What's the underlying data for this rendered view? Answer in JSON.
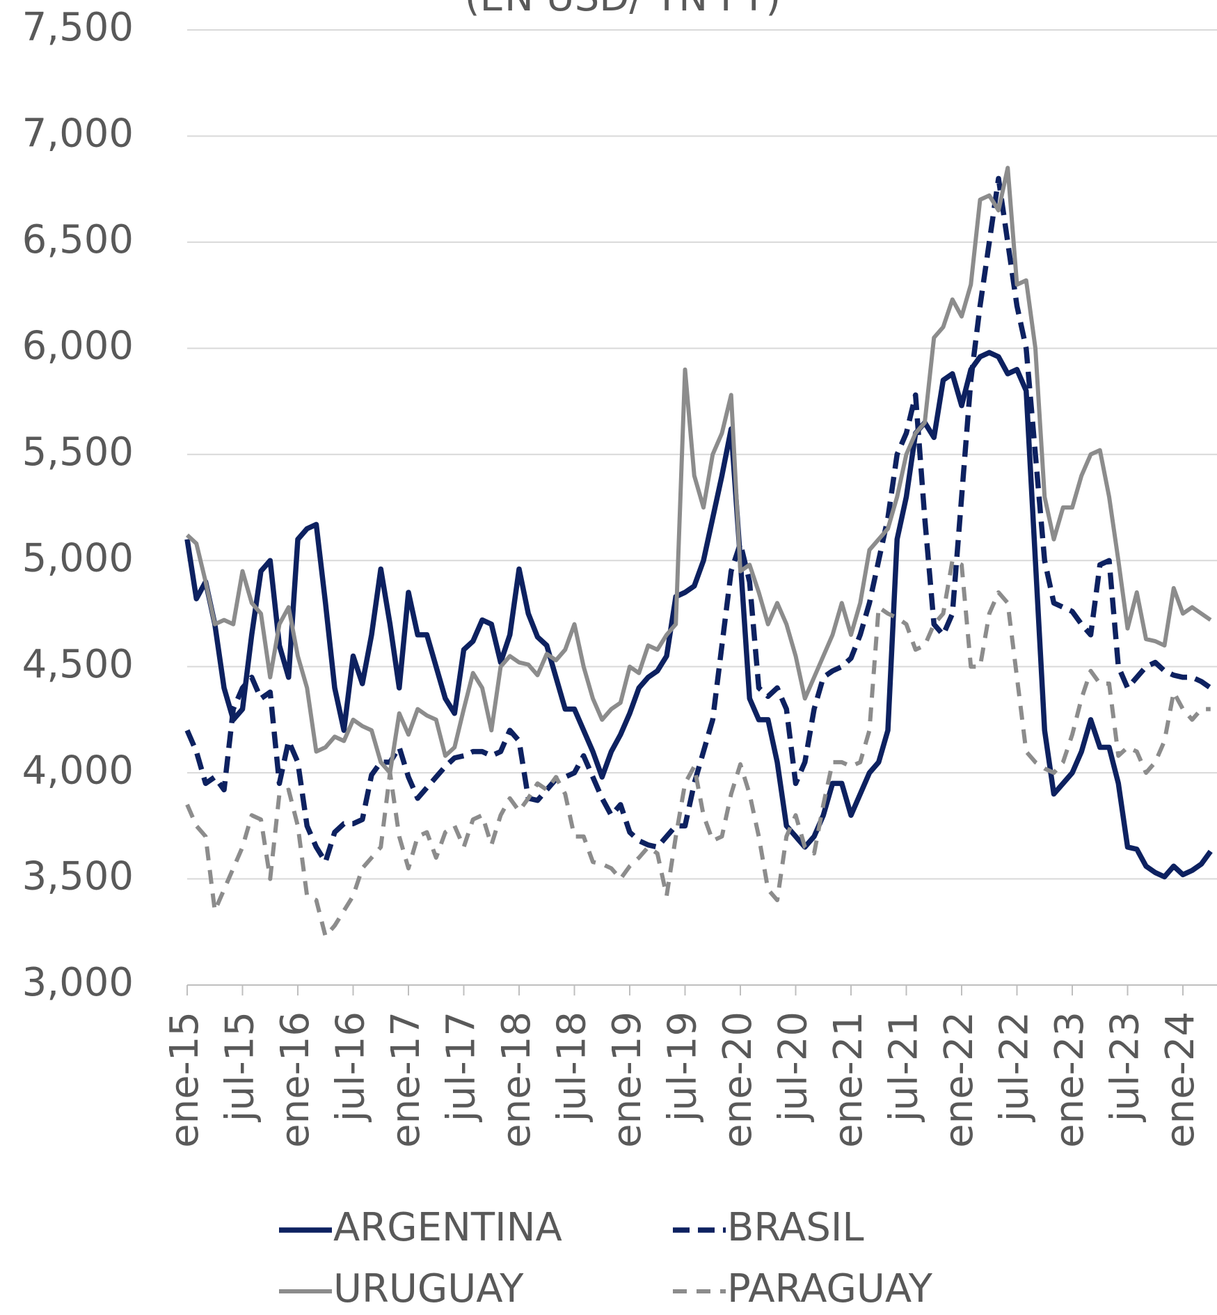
{
  "chart_data": {
    "type": "line",
    "title": "(EN USD/ TN FT)",
    "categories": [
      "ene-15",
      null,
      null,
      null,
      null,
      null,
      "jul-15",
      null,
      null,
      null,
      null,
      null,
      "ene-16",
      null,
      null,
      null,
      null,
      null,
      "jul-16",
      null,
      null,
      null,
      null,
      null,
      "ene-17",
      null,
      null,
      null,
      null,
      null,
      "jul-17",
      null,
      null,
      null,
      null,
      null,
      "ene-18",
      null,
      null,
      null,
      null,
      null,
      "jul-18",
      null,
      null,
      null,
      null,
      null,
      "ene-19",
      null,
      null,
      null,
      null,
      null,
      "jul-19",
      null,
      null,
      null,
      null,
      null,
      "ene-20",
      null,
      null,
      null,
      null,
      null,
      "jul-20",
      null,
      null,
      null,
      null,
      null,
      "ene-21",
      null,
      null,
      null,
      null,
      null,
      "jul-21",
      null,
      null,
      null,
      null,
      null,
      "ene-22",
      null,
      null,
      null,
      null,
      null,
      "jul-22",
      null,
      null,
      null,
      null,
      null,
      "ene-23",
      null,
      null,
      null,
      null,
      null,
      "jul-23",
      null,
      null,
      null,
      null,
      null,
      "ene-24",
      null,
      null,
      null
    ],
    "ylim": [
      3000,
      7500
    ],
    "yticks": [
      {
        "value": 3000,
        "label": "3,000"
      },
      {
        "value": 3500,
        "label": "3,500"
      },
      {
        "value": 4000,
        "label": "4,000"
      },
      {
        "value": 4500,
        "label": "4,500"
      },
      {
        "value": 5000,
        "label": "5,000"
      },
      {
        "value": 5500,
        "label": "5,500"
      },
      {
        "value": 6000,
        "label": "6,000"
      },
      {
        "value": 6500,
        "label": "6,500"
      },
      {
        "value": 7000,
        "label": "7,000"
      },
      {
        "value": 7500,
        "label": "7,500"
      }
    ],
    "grid": true,
    "legend": "bottom",
    "series": [
      {
        "name": "ARGENTINA",
        "color": "#0d2160",
        "dash": "solid",
        "values": [
          5100,
          4820,
          4900,
          4700,
          4400,
          4250,
          4300,
          4650,
          4950,
          5000,
          4600,
          4450,
          5100,
          5150,
          5170,
          4800,
          4400,
          4200,
          4550,
          4420,
          4650,
          4960,
          4700,
          4400,
          4850,
          4650,
          4650,
          4500,
          4350,
          4280,
          4580,
          4620,
          4720,
          4700,
          4520,
          4650,
          4960,
          4750,
          4640,
          4600,
          4450,
          4300,
          4300,
          4200,
          4100,
          3980,
          4100,
          4180,
          4280,
          4400,
          4450,
          4480,
          4550,
          4830,
          4850,
          4880,
          5000,
          5200,
          5400,
          5620,
          5000,
          4350,
          4250,
          4250,
          4050,
          3750,
          3700,
          3650,
          3700,
          3800,
          3950,
          3950,
          3800,
          3900,
          4000,
          4050,
          4200,
          5100,
          5300,
          5600,
          5650,
          5580,
          5850,
          5880,
          5730,
          5900,
          5960,
          5980,
          5960,
          5880,
          5900,
          5800,
          5000,
          4200,
          3900,
          3950,
          4000,
          4100,
          4250,
          4120,
          4120,
          3950,
          3650,
          3640,
          3560,
          3530,
          3510,
          3560,
          3520,
          3540,
          3570,
          3630
        ]
      },
      {
        "name": "BRASIL",
        "color": "#0d2160",
        "dash": "dashed",
        "values": [
          4200,
          4100,
          3950,
          3980,
          3920,
          4300,
          4400,
          4450,
          4350,
          4380,
          3950,
          4150,
          4050,
          3750,
          3650,
          3580,
          3720,
          3760,
          3760,
          3780,
          3990,
          4050,
          4050,
          4120,
          3980,
          3880,
          3930,
          3980,
          4030,
          4070,
          4080,
          4100,
          4100,
          4080,
          4100,
          4200,
          4150,
          3880,
          3870,
          3920,
          3970,
          3980,
          4000,
          4080,
          3980,
          3880,
          3800,
          3850,
          3720,
          3680,
          3660,
          3650,
          3700,
          3750,
          3750,
          3950,
          4100,
          4250,
          4600,
          4950,
          5080,
          4900,
          4400,
          4360,
          4400,
          4300,
          3950,
          4050,
          4300,
          4450,
          4480,
          4500,
          4540,
          4650,
          4800,
          5000,
          5200,
          5500,
          5600,
          5780,
          5200,
          4700,
          4650,
          4750,
          5300,
          5850,
          6200,
          6500,
          6800,
          6500,
          6200,
          6000,
          5500,
          5000,
          4800,
          4780,
          4760,
          4700,
          4650,
          4980,
          5000,
          4500,
          4400,
          4450,
          4500,
          4520,
          4480,
          4460,
          4450,
          4450,
          4430,
          4400
        ]
      },
      {
        "name": "URUGUAY",
        "color": "#8c8c8c",
        "dash": "solid",
        "values": [
          5120,
          5080,
          4900,
          4700,
          4720,
          4700,
          4950,
          4800,
          4750,
          4450,
          4700,
          4780,
          4550,
          4400,
          4100,
          4120,
          4170,
          4150,
          4250,
          4220,
          4200,
          4050,
          4000,
          4280,
          4180,
          4300,
          4270,
          4250,
          4080,
          4120,
          4300,
          4470,
          4400,
          4200,
          4500,
          4550,
          4520,
          4510,
          4460,
          4560,
          4530,
          4580,
          4700,
          4500,
          4350,
          4250,
          4300,
          4330,
          4500,
          4470,
          4600,
          4580,
          4650,
          4700,
          5900,
          5400,
          5250,
          5500,
          5600,
          5780,
          4950,
          4980,
          4850,
          4700,
          4800,
          4700,
          4550,
          4350,
          4450,
          4550,
          4650,
          4800,
          4650,
          4800,
          5050,
          5100,
          5150,
          5300,
          5500,
          5600,
          5650,
          6050,
          6100,
          6230,
          6150,
          6300,
          6700,
          6720,
          6650,
          6850,
          6300,
          6320,
          6000,
          5300,
          5100,
          5250,
          5250,
          5400,
          5500,
          5520,
          5300,
          5000,
          4680,
          4850,
          4630,
          4620,
          4600,
          4870,
          4750,
          4780,
          4750,
          4720
        ]
      },
      {
        "name": "PARAGUAY",
        "color": "#8c8c8c",
        "dash": "dashed",
        "values": [
          3850,
          3750,
          3700,
          3350,
          3450,
          3550,
          3650,
          3800,
          3780,
          3500,
          3900,
          3920,
          3750,
          3420,
          3400,
          3230,
          3280,
          3350,
          3420,
          3550,
          3600,
          3650,
          4000,
          3700,
          3550,
          3700,
          3720,
          3600,
          3720,
          3750,
          3650,
          3780,
          3800,
          3660,
          3800,
          3880,
          3820,
          3880,
          3950,
          3920,
          3980,
          3900,
          3700,
          3700,
          3580,
          3570,
          3550,
          3500,
          3560,
          3600,
          3650,
          3620,
          3420,
          3700,
          3950,
          4030,
          3800,
          3680,
          3700,
          3900,
          4040,
          3900,
          3700,
          3450,
          3400,
          3700,
          3800,
          3650,
          3620,
          3850,
          4050,
          4050,
          4030,
          4050,
          4200,
          4780,
          4750,
          4730,
          4700,
          4580,
          4600,
          4700,
          4750,
          5000,
          4980,
          4500,
          4500,
          4750,
          4850,
          4800,
          4450,
          4100,
          4050,
          4020,
          4000,
          4050,
          4180,
          4350,
          4480,
          4420,
          4420,
          4080,
          4120,
          4100,
          4000,
          4050,
          4150,
          4380,
          4300,
          4250,
          4300,
          4300
        ]
      }
    ]
  }
}
